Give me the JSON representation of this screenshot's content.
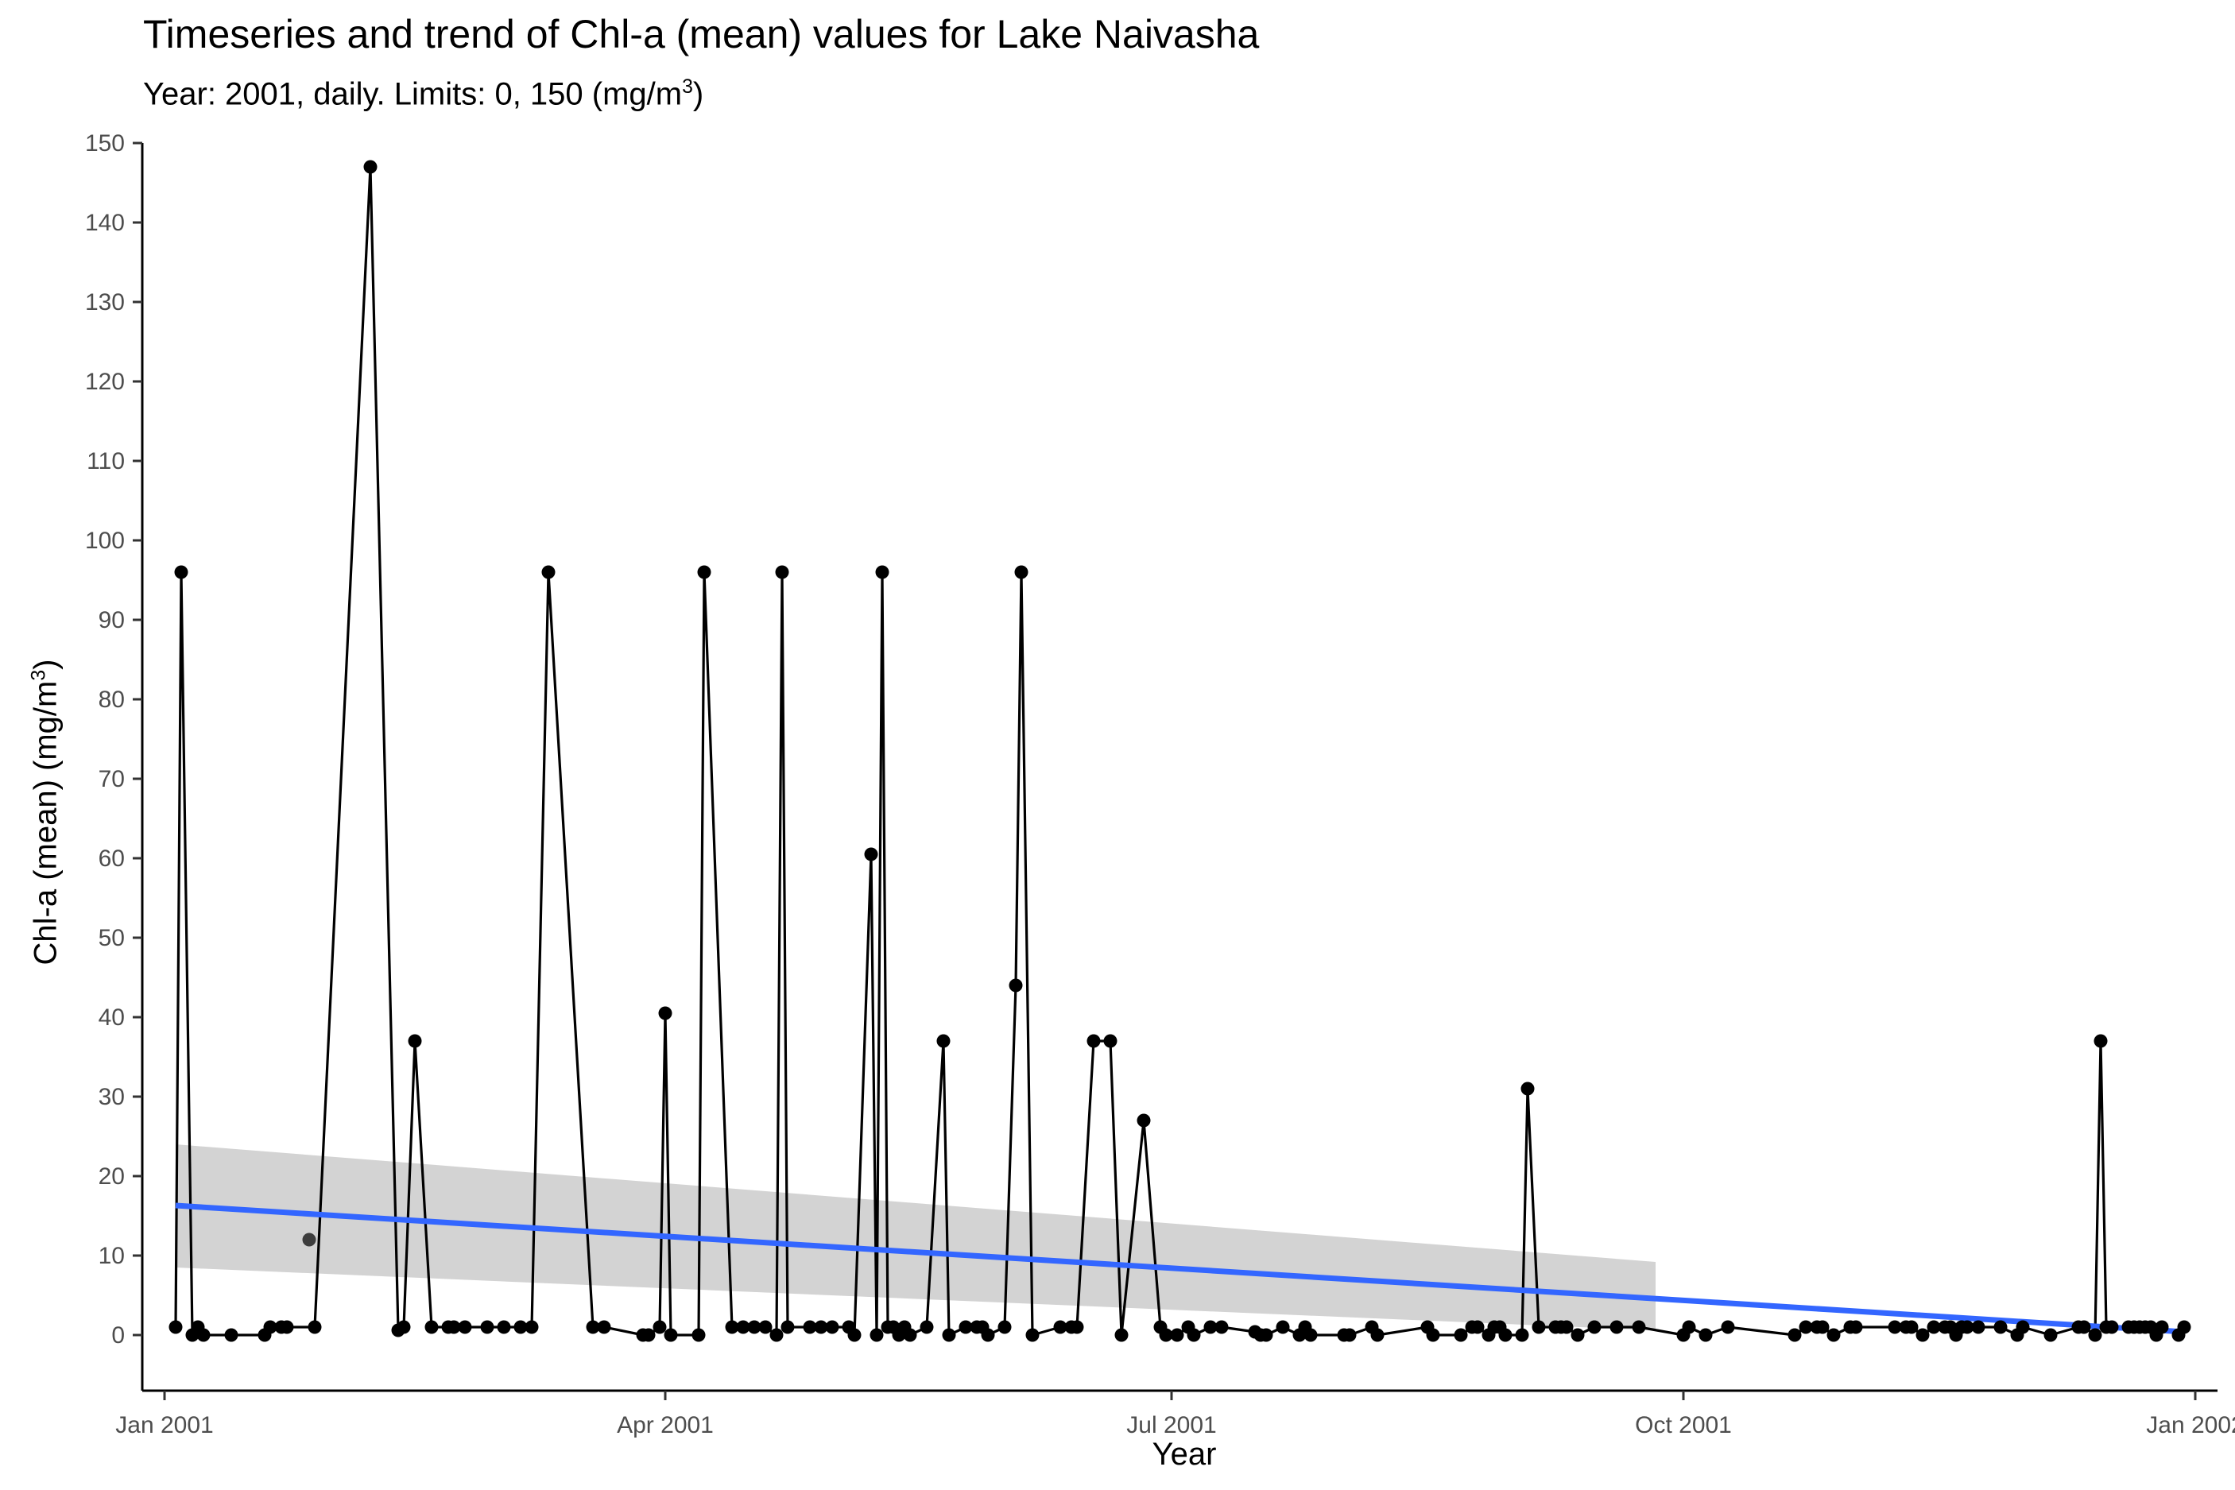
{
  "chart_data": {
    "type": "line",
    "title": "Timeseries and trend of Chl-a (mean) values for Lake Naivasha",
    "subtitle": {
      "text": "Year: 2001, daily. Limits: 0, 150 (mg/m",
      "sup": "3",
      "suffix": ")"
    },
    "xlabel": "Year",
    "ylabel": {
      "text": "Chl-a (mean) (mg/m",
      "sup": "3",
      "suffix": ")"
    },
    "xlim": [
      "2000-12-28",
      "2002-01-05"
    ],
    "ylim": [
      -7,
      150
    ],
    "x_ticks": [
      {
        "date": "2001-01-01",
        "label": "Jan 2001"
      },
      {
        "date": "2001-04-01",
        "label": "Apr 2001"
      },
      {
        "date": "2001-07-01",
        "label": "Jul 2001"
      },
      {
        "date": "2001-10-01",
        "label": "Oct 2001"
      },
      {
        "date": "2002-01-01",
        "label": "Jan 2002"
      }
    ],
    "y_ticks": [
      0,
      10,
      20,
      30,
      40,
      50,
      60,
      70,
      80,
      90,
      100,
      110,
      120,
      130,
      140,
      150
    ],
    "grid": false,
    "series": [
      {
        "style": "line+points",
        "color": "#000000",
        "points": [
          [
            "2001-01-03",
            1
          ],
          [
            "2001-01-04",
            96
          ],
          [
            "2001-01-06",
            0
          ],
          [
            "2001-01-07",
            1
          ],
          [
            "2001-01-08",
            0
          ],
          [
            "2001-01-13",
            0
          ],
          [
            "2001-01-19",
            0
          ],
          [
            "2001-01-20",
            1
          ],
          [
            "2001-01-22",
            1
          ],
          [
            "2001-01-23",
            1
          ],
          [
            "2001-01-28",
            1
          ],
          [
            "2001-02-07",
            147
          ],
          [
            "2001-02-12",
            0.6
          ],
          [
            "2001-02-13",
            1
          ],
          [
            "2001-02-15",
            37
          ],
          [
            "2001-02-18",
            1
          ],
          [
            "2001-02-21",
            1
          ],
          [
            "2001-02-22",
            1
          ],
          [
            "2001-02-24",
            1
          ],
          [
            "2001-02-28",
            1
          ],
          [
            "2001-03-03",
            1
          ],
          [
            "2001-03-06",
            1
          ],
          [
            "2001-03-08",
            1
          ],
          [
            "2001-03-11",
            96
          ],
          [
            "2001-03-19",
            1
          ],
          [
            "2001-03-21",
            1
          ],
          [
            "2001-03-28",
            0
          ],
          [
            "2001-03-29",
            0
          ],
          [
            "2001-03-31",
            1
          ],
          [
            "2001-04-01",
            40.5
          ],
          [
            "2001-04-02",
            0
          ],
          [
            "2001-04-07",
            0
          ],
          [
            "2001-04-08",
            96
          ],
          [
            "2001-04-13",
            1
          ],
          [
            "2001-04-15",
            1
          ],
          [
            "2001-04-17",
            1
          ],
          [
            "2001-04-19",
            1
          ],
          [
            "2001-04-21",
            0
          ],
          [
            "2001-04-22",
            96
          ],
          [
            "2001-04-23",
            1
          ],
          [
            "2001-04-27",
            1
          ],
          [
            "2001-04-29",
            1
          ],
          [
            "2001-05-01",
            1
          ],
          [
            "2001-05-04",
            1
          ],
          [
            "2001-05-05",
            0
          ],
          [
            "2001-05-08",
            60.5
          ],
          [
            "2001-05-09",
            0
          ],
          [
            "2001-05-10",
            96
          ],
          [
            "2001-05-11",
            1
          ],
          [
            "2001-05-12",
            1
          ],
          [
            "2001-05-13",
            0
          ],
          [
            "2001-05-14",
            1
          ],
          [
            "2001-05-15",
            0
          ],
          [
            "2001-05-18",
            1
          ],
          [
            "2001-05-21",
            37
          ],
          [
            "2001-05-22",
            0
          ],
          [
            "2001-05-25",
            1
          ],
          [
            "2001-05-27",
            1
          ],
          [
            "2001-05-28",
            1
          ],
          [
            "2001-05-29",
            0
          ],
          [
            "2001-06-01",
            1
          ],
          [
            "2001-06-03",
            44
          ],
          [
            "2001-06-04",
            96
          ],
          [
            "2001-06-06",
            0
          ],
          [
            "2001-06-11",
            1
          ],
          [
            "2001-06-13",
            1
          ],
          [
            "2001-06-14",
            1
          ],
          [
            "2001-06-17",
            37
          ],
          [
            "2001-06-20",
            37
          ],
          [
            "2001-06-22",
            0
          ],
          [
            "2001-06-26",
            27
          ],
          [
            "2001-06-29",
            1
          ],
          [
            "2001-06-30",
            0
          ],
          [
            "2001-07-02",
            0
          ],
          [
            "2001-07-04",
            1
          ],
          [
            "2001-07-05",
            0
          ],
          [
            "2001-07-08",
            1
          ],
          [
            "2001-07-10",
            1
          ],
          [
            "2001-07-16",
            0.4
          ],
          [
            "2001-07-17",
            0
          ],
          [
            "2001-07-18",
            0
          ],
          [
            "2001-07-21",
            1
          ],
          [
            "2001-07-24",
            0
          ],
          [
            "2001-07-25",
            1
          ],
          [
            "2001-07-26",
            0
          ],
          [
            "2001-08-01",
            0
          ],
          [
            "2001-08-02",
            0
          ],
          [
            "2001-08-06",
            1
          ],
          [
            "2001-08-07",
            0
          ],
          [
            "2001-08-16",
            1
          ],
          [
            "2001-08-17",
            0
          ],
          [
            "2001-08-22",
            0
          ],
          [
            "2001-08-24",
            1
          ],
          [
            "2001-08-25",
            1
          ],
          [
            "2001-08-27",
            0
          ],
          [
            "2001-08-28",
            1
          ],
          [
            "2001-08-29",
            1
          ],
          [
            "2001-08-30",
            0
          ],
          [
            "2001-09-02",
            0
          ],
          [
            "2001-09-03",
            31
          ],
          [
            "2001-09-05",
            1
          ],
          [
            "2001-09-08",
            1
          ],
          [
            "2001-09-09",
            1
          ],
          [
            "2001-09-10",
            1
          ],
          [
            "2001-09-12",
            0
          ],
          [
            "2001-09-15",
            1
          ],
          [
            "2001-09-19",
            1
          ],
          [
            "2001-09-23",
            1
          ],
          [
            "2001-10-01",
            0
          ],
          [
            "2001-10-02",
            1
          ],
          [
            "2001-10-05",
            0
          ],
          [
            "2001-10-09",
            1
          ],
          [
            "2001-10-21",
            0
          ],
          [
            "2001-10-23",
            1
          ],
          [
            "2001-10-25",
            1
          ],
          [
            "2001-10-26",
            1
          ],
          [
            "2001-10-28",
            0
          ],
          [
            "2001-10-31",
            1
          ],
          [
            "2001-11-01",
            1
          ],
          [
            "2001-11-08",
            1
          ],
          [
            "2001-11-10",
            1
          ],
          [
            "2001-11-11",
            1
          ],
          [
            "2001-11-13",
            0
          ],
          [
            "2001-11-15",
            1
          ],
          [
            "2001-11-17",
            1
          ],
          [
            "2001-11-18",
            1
          ],
          [
            "2001-11-19",
            0
          ],
          [
            "2001-11-20",
            1
          ],
          [
            "2001-11-21",
            1
          ],
          [
            "2001-11-23",
            1
          ],
          [
            "2001-11-27",
            1
          ],
          [
            "2001-11-30",
            0
          ],
          [
            "2001-12-01",
            1
          ],
          [
            "2001-12-06",
            0
          ],
          [
            "2001-12-11",
            1
          ],
          [
            "2001-12-12",
            1
          ],
          [
            "2001-12-14",
            0
          ],
          [
            "2001-12-15",
            37
          ],
          [
            "2001-12-16",
            1
          ],
          [
            "2001-12-17",
            1
          ],
          [
            "2001-12-20",
            1
          ],
          [
            "2001-12-21",
            1
          ],
          [
            "2001-12-22",
            1
          ],
          [
            "2001-12-23",
            1
          ],
          [
            "2001-12-24",
            1
          ],
          [
            "2001-12-25",
            0
          ],
          [
            "2001-12-26",
            1
          ],
          [
            "2001-12-29",
            0
          ],
          [
            "2001-12-30",
            1
          ]
        ]
      },
      {
        "style": "points",
        "color": "#3d3d3d",
        "points": [
          [
            "2001-01-27",
            12
          ]
        ]
      }
    ],
    "trend": {
      "color": "#3366FF",
      "start": [
        "2001-01-03",
        16.3
      ],
      "end": [
        "2001-12-30",
        0.4
      ]
    },
    "confidence_band": {
      "color": "#D3D3D3",
      "x_range": [
        "2001-01-03",
        "2001-09-26"
      ],
      "upper_start": 24,
      "lower_start": 8.5,
      "upper_end": 9.2,
      "lower_end": 0.6
    }
  }
}
